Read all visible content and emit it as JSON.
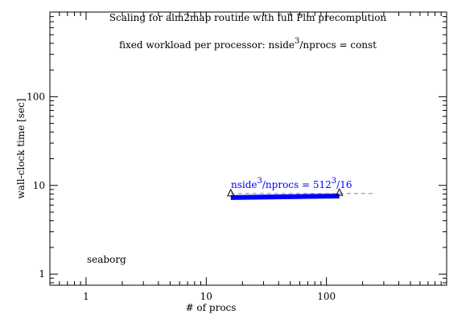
{
  "chart_data": {
    "type": "line",
    "title": "Scaling for alm2map routine with full Plm precompution",
    "annotations": [
      [
        "fixed workload per processor: nside",
        "3",
        "/nprocs = const"
      ],
      [
        "nside",
        "3",
        "/nprocs = 512",
        "3",
        "/16"
      ],
      [
        "seaborg"
      ]
    ],
    "x_label": "# of procs",
    "y_label": "wall-clock time [sec]",
    "log_x": true,
    "log_y": true,
    "xlim": [
      0.5,
      1000
    ],
    "ylim": [
      0.75,
      900
    ],
    "xticks": [
      1,
      10,
      100
    ],
    "yticks": [
      1,
      10,
      100
    ],
    "xminor_ticks": [
      0.6,
      0.7,
      0.8,
      0.9,
      2,
      3,
      4,
      5,
      6,
      7,
      8,
      9,
      20,
      30,
      40,
      50,
      60,
      70,
      80,
      90,
      200,
      300,
      400,
      500,
      600,
      700,
      800,
      900
    ],
    "yminor_ticks": [
      0.8,
      0.9,
      2,
      3,
      4,
      5,
      6,
      7,
      8,
      9,
      20,
      30,
      40,
      50,
      60,
      70,
      80,
      90,
      200,
      300,
      400,
      500,
      600,
      700,
      800
    ],
    "series": [
      {
        "color": "#0000ff",
        "style": "thick",
        "x": [
          16,
          32,
          64,
          128
        ],
        "values": [
          7.3,
          7.4,
          7.5,
          7.6
        ]
      },
      {
        "color": "#888888",
        "style": "dashed",
        "x": [
          16,
          256
        ],
        "values": [
          8.1,
          8.1
        ]
      },
      {
        "color": "#000000",
        "style": "triangle",
        "x": [
          16,
          128
        ],
        "values": [
          8.1,
          8.2
        ]
      }
    ]
  }
}
